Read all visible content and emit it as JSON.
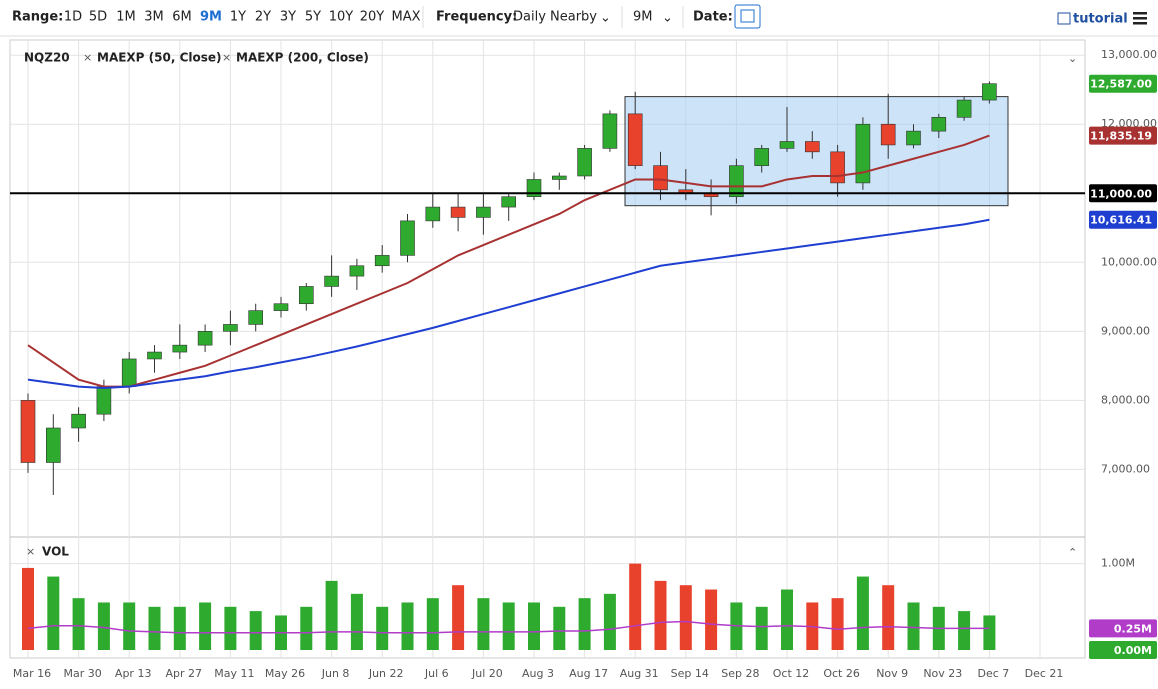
{
  "toolbar": {
    "range_label": "Range:",
    "ranges": [
      "1D",
      "5D",
      "1M",
      "3M",
      "6M",
      "9M",
      "1Y",
      "2Y",
      "3Y",
      "5Y",
      "10Y",
      "20Y",
      "MAX"
    ],
    "active_range_index": 5,
    "frequency_label": "Frequency:",
    "frequency": "Daily Nearby",
    "period": "9M",
    "date_label": "Date:",
    "tutorial": "tutorial"
  },
  "chart_data": [
    {
      "type": "candlestick",
      "symbol": "NQZ20",
      "categories": [
        "Mar 16",
        null,
        "Mar 30",
        null,
        "Apr 13",
        null,
        "Apr 27",
        null,
        "May 11",
        null,
        "May 26",
        null,
        "Jun 8",
        null,
        "Jun 22",
        null,
        "Jul 6",
        null,
        "Jul 20",
        null,
        "Aug 3",
        null,
        "Aug 17",
        null,
        "Aug 31",
        null,
        "Sep 14",
        null,
        "Sep 28",
        null,
        "Oct 12",
        null,
        "Oct 26",
        null,
        "Nov 9",
        null,
        "Nov 23",
        null,
        "Dec 7",
        null,
        "Dec 21"
      ],
      "open": [
        8000,
        7100,
        7600,
        7800,
        8200,
        8600,
        8700,
        8800,
        9000,
        9100,
        9300,
        9400,
        9650,
        9800,
        9950,
        10100,
        10600,
        10800,
        10650,
        10800,
        10950,
        11200,
        11250,
        11650,
        12150,
        11400,
        11050,
        11000,
        10950,
        11400,
        11650,
        11750,
        11600,
        11150,
        12000,
        11700,
        11900,
        12100,
        12350,
        null,
        null
      ],
      "high": [
        8100,
        7800,
        7900,
        8300,
        8700,
        8800,
        9100,
        9100,
        9300,
        9400,
        9500,
        9700,
        10100,
        10050,
        10250,
        10700,
        11000,
        11000,
        11000,
        11000,
        11300,
        11300,
        11700,
        12200,
        12470,
        11600,
        11350,
        11200,
        11500,
        11700,
        12250,
        11900,
        11700,
        12100,
        12440,
        12000,
        12150,
        12400,
        12620,
        null,
        null
      ],
      "low": [
        6950,
        6630,
        7400,
        7700,
        8100,
        8400,
        8600,
        8700,
        8800,
        9000,
        9200,
        9300,
        9500,
        9600,
        9850,
        10000,
        10500,
        10450,
        10400,
        10600,
        10900,
        11050,
        11200,
        11600,
        11350,
        10900,
        10900,
        10680,
        10850,
        11300,
        11600,
        11500,
        10950,
        11050,
        11500,
        11650,
        11800,
        12050,
        12300,
        null,
        null
      ],
      "close": [
        7100,
        7600,
        7800,
        8200,
        8600,
        8700,
        8800,
        9000,
        9100,
        9300,
        9400,
        9650,
        9800,
        9950,
        10100,
        10600,
        10800,
        10650,
        10800,
        10950,
        11200,
        11250,
        11650,
        12150,
        11400,
        11050,
        11000,
        10950,
        11400,
        11650,
        11750,
        11600,
        11150,
        12000,
        11700,
        11900,
        12100,
        12350,
        12587,
        null,
        null
      ],
      "up_color": "#2eaa2e",
      "down_color": "#e8412c",
      "series": [
        {
          "name": "MAEXP (50, Close)",
          "color": "#a83232",
          "values": [
            8800,
            8550,
            8300,
            8200,
            8200,
            8300,
            8400,
            8500,
            8650,
            8800,
            8950,
            9100,
            9250,
            9400,
            9550,
            9700,
            9900,
            10100,
            10250,
            10400,
            10550,
            10700,
            10900,
            11050,
            11200,
            11200,
            11150,
            11100,
            11100,
            11100,
            11200,
            11250,
            11250,
            11300,
            11400,
            11500,
            11600,
            11700,
            11835.19,
            null,
            null
          ]
        },
        {
          "name": "MAEXP (200, Close)",
          "color": "#1f3fd1",
          "values": [
            8300,
            8250,
            8200,
            8180,
            8200,
            8250,
            8300,
            8350,
            8420,
            8480,
            8550,
            8620,
            8700,
            8780,
            8870,
            8960,
            9050,
            9150,
            9250,
            9350,
            9450,
            9550,
            9650,
            9750,
            9850,
            9950,
            10000,
            10050,
            10100,
            10150,
            10200,
            10250,
            10300,
            10350,
            10400,
            10450,
            10500,
            10550,
            10616.41,
            null,
            null
          ]
        }
      ],
      "ylim": [
        6050,
        13220
      ],
      "yticks": [
        {
          "value": 7000,
          "label": "7,000.00"
        },
        {
          "value": 8000,
          "label": "8,000.00"
        },
        {
          "value": 9000,
          "label": "9,000.00"
        },
        {
          "value": 10000,
          "label": "10,000.00"
        },
        {
          "value": 11000,
          "label": "11,000.00"
        },
        {
          "value": 12000,
          "label": "12,000.00"
        },
        {
          "value": 13000,
          "label": "13,000.00"
        }
      ],
      "hline": 11000,
      "box": {
        "top": 12400,
        "bottom": 10820,
        "color": "#9cc7f2"
      },
      "price_labels": [
        {
          "value": 12587,
          "label": "12,587.00",
          "color": "#2eaa2e"
        },
        {
          "value": 11835.19,
          "label": "11,835.19",
          "color": "#a83232"
        },
        {
          "value": 11000,
          "label": "11,000.00",
          "color": "#000000"
        },
        {
          "value": 10616.41,
          "label": "10,616.41",
          "color": "#1f3fd1"
        }
      ],
      "grid": true
    },
    {
      "type": "bar",
      "title": "VOL",
      "values": [
        0.95,
        0.85,
        0.6,
        0.55,
        0.55,
        0.5,
        0.5,
        0.55,
        0.5,
        0.45,
        0.4,
        0.5,
        0.8,
        0.65,
        0.5,
        0.55,
        0.6,
        0.75,
        0.6,
        0.55,
        0.55,
        0.5,
        0.6,
        0.65,
        1.0,
        0.8,
        0.75,
        0.7,
        0.55,
        0.5,
        0.7,
        0.55,
        0.6,
        0.85,
        0.75,
        0.55,
        0.5,
        0.45,
        0.4,
        null,
        null
      ],
      "ma_values": [
        0.25,
        0.28,
        0.28,
        0.26,
        0.22,
        0.21,
        0.2,
        0.2,
        0.2,
        0.2,
        0.2,
        0.2,
        0.21,
        0.21,
        0.2,
        0.2,
        0.2,
        0.21,
        0.21,
        0.21,
        0.21,
        0.22,
        0.22,
        0.24,
        0.28,
        0.32,
        0.33,
        0.3,
        0.28,
        0.27,
        0.28,
        0.27,
        0.24,
        0.26,
        0.27,
        0.26,
        0.25,
        0.25,
        0.25,
        null,
        null
      ],
      "ma_color": "#b03cc8",
      "ylim": [
        0,
        1.25
      ],
      "yticks": [
        {
          "value": 1,
          "label": "1.00M"
        }
      ],
      "price_labels": [
        {
          "value": 0.25,
          "label": "0.25M",
          "color": "#b03cc8"
        },
        {
          "value": 0,
          "label": "0.00M",
          "color": "#2eaa2e"
        }
      ],
      "grid": true
    }
  ]
}
